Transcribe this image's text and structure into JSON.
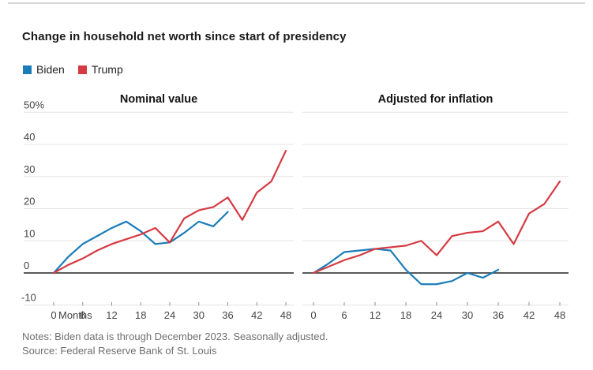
{
  "page": {
    "title": "Change in household net worth since start of presidency",
    "notes": "Notes: Biden data is through December 2023. Seasonally adjusted.",
    "source": "Source: Federal Reserve Bank of St. Louis"
  },
  "legend": [
    {
      "label": "Biden",
      "color": "#1a7cb8"
    },
    {
      "label": "Trump",
      "color": "#d53a42"
    }
  ],
  "chart_data": [
    {
      "type": "line",
      "title": "Nominal value",
      "xlim": [
        0,
        48
      ],
      "ylim": [
        -10,
        50
      ],
      "grid": true,
      "x_ticks": [
        0,
        6,
        12,
        18,
        24,
        30,
        36,
        42,
        48
      ],
      "x_axis_unit": "Months",
      "y_ticks": [
        50,
        40,
        30,
        20,
        10,
        0,
        -10
      ],
      "y_tick_labels": [
        "50%",
        "40",
        "30",
        "20",
        "10",
        "0",
        "-10"
      ],
      "series": [
        {
          "name": "Biden",
          "color": "#1a7cb8",
          "months": [
            0,
            3,
            6,
            9,
            12,
            15,
            18,
            21,
            24,
            27,
            30,
            33,
            36
          ],
          "values": [
            0,
            5,
            9,
            11.5,
            14,
            16,
            13,
            9,
            9.5,
            12.5,
            16,
            14.5,
            19
          ]
        },
        {
          "name": "Trump",
          "color": "#d53a42",
          "months": [
            0,
            3,
            6,
            9,
            12,
            15,
            18,
            21,
            24,
            27,
            30,
            33,
            36,
            39,
            42,
            45,
            48
          ],
          "values": [
            0,
            2.5,
            4.5,
            7,
            9,
            10.5,
            12,
            14,
            9.5,
            17,
            19.5,
            20.5,
            23.5,
            16.5,
            25,
            28.5,
            38
          ]
        }
      ]
    },
    {
      "type": "line",
      "title": "Adjusted for inflation",
      "xlim": [
        0,
        48
      ],
      "ylim": [
        -10,
        50
      ],
      "grid": true,
      "x_ticks": [
        0,
        6,
        12,
        18,
        24,
        30,
        36,
        42,
        48
      ],
      "x_axis_unit": "",
      "y_ticks": [
        50,
        40,
        30,
        20,
        10,
        0,
        -10
      ],
      "series": [
        {
          "name": "Biden",
          "color": "#1a7cb8",
          "months": [
            0,
            3,
            6,
            9,
            12,
            15,
            18,
            21,
            24,
            27,
            30,
            33,
            36
          ],
          "values": [
            0,
            3,
            6.5,
            7,
            7.5,
            7,
            1,
            -3.5,
            -3.5,
            -2.5,
            0,
            -1.5,
            1
          ]
        },
        {
          "name": "Trump",
          "color": "#d53a42",
          "months": [
            0,
            3,
            6,
            9,
            12,
            15,
            18,
            21,
            24,
            27,
            30,
            33,
            36,
            39,
            42,
            45,
            48
          ],
          "values": [
            0,
            2,
            4,
            5.5,
            7.5,
            8,
            8.5,
            10,
            5.5,
            11.5,
            12.5,
            13,
            16,
            9,
            18.5,
            21.5,
            28.5
          ]
        }
      ]
    }
  ]
}
